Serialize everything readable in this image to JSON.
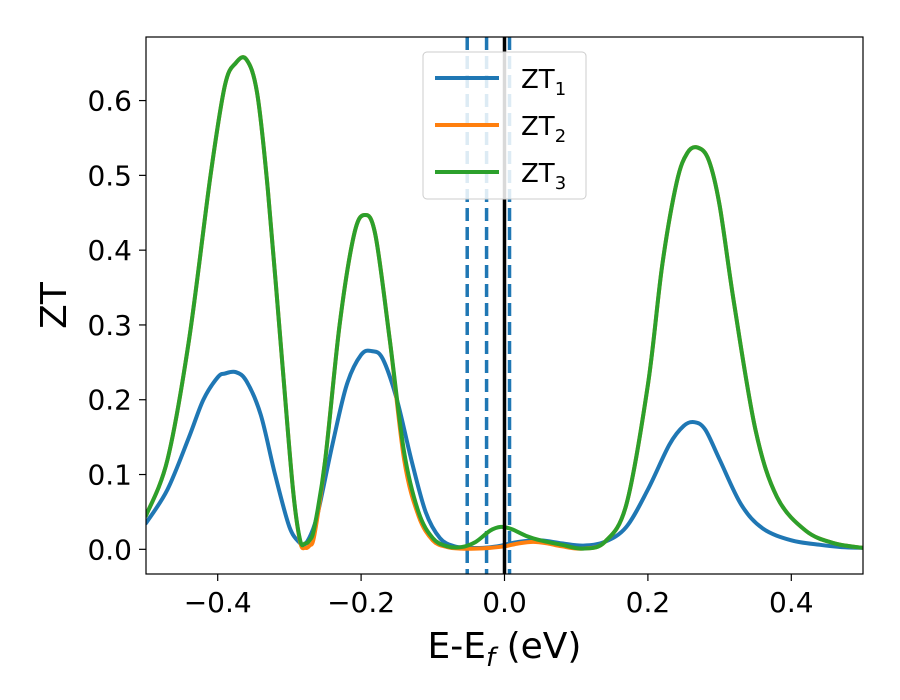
{
  "chart_data": {
    "type": "line",
    "xlabel": "E-E",
    "xlabel_sub": "f",
    "xlabel_unit": " (eV)",
    "ylabel": "ZT",
    "xlim": [
      -0.5,
      0.5
    ],
    "ylim": [
      -0.033,
      0.685
    ],
    "xticks": [
      -0.4,
      -0.2,
      0.0,
      0.2,
      0.4
    ],
    "xtick_labels": [
      "−0.4",
      "−0.2",
      "0.0",
      "0.2",
      "0.4"
    ],
    "yticks": [
      0.0,
      0.1,
      0.2,
      0.3,
      0.4,
      0.5,
      0.6
    ],
    "ytick_labels": [
      "0.0",
      "0.1",
      "0.2",
      "0.3",
      "0.4",
      "0.5",
      "0.6"
    ],
    "grid": false,
    "legend": {
      "position": "top-center"
    },
    "series": [
      {
        "name": "ZT",
        "name_sub": "1",
        "color": "#1f77b4",
        "x": [
          -0.5,
          -0.47,
          -0.44,
          -0.42,
          -0.4,
          -0.39,
          -0.375,
          -0.36,
          -0.34,
          -0.32,
          -0.3,
          -0.285,
          -0.28,
          -0.27,
          -0.26,
          -0.24,
          -0.22,
          -0.2,
          -0.185,
          -0.17,
          -0.15,
          -0.13,
          -0.11,
          -0.09,
          -0.07,
          -0.05,
          -0.03,
          -0.01,
          0.0,
          0.02,
          0.05,
          0.08,
          0.11,
          0.14,
          0.17,
          0.2,
          0.23,
          0.25,
          0.265,
          0.28,
          0.3,
          0.33,
          0.36,
          0.4,
          0.44,
          0.47,
          0.5
        ],
        "y": [
          0.035,
          0.08,
          0.15,
          0.2,
          0.23,
          0.235,
          0.237,
          0.225,
          0.18,
          0.1,
          0.03,
          0.008,
          0.005,
          0.02,
          0.05,
          0.14,
          0.22,
          0.26,
          0.265,
          0.255,
          0.2,
          0.12,
          0.05,
          0.015,
          0.004,
          0.002,
          0.002,
          0.004,
          0.006,
          0.01,
          0.012,
          0.008,
          0.005,
          0.01,
          0.03,
          0.08,
          0.14,
          0.165,
          0.17,
          0.16,
          0.12,
          0.06,
          0.028,
          0.012,
          0.006,
          0.003,
          0.002
        ]
      },
      {
        "name": "ZT",
        "name_sub": "2",
        "color": "#ff7f0e",
        "x": [
          -0.5,
          -0.47,
          -0.44,
          -0.41,
          -0.39,
          -0.375,
          -0.36,
          -0.345,
          -0.33,
          -0.31,
          -0.295,
          -0.285,
          -0.278,
          -0.272,
          -0.265,
          -0.25,
          -0.23,
          -0.21,
          -0.195,
          -0.18,
          -0.16,
          -0.14,
          -0.12,
          -0.1,
          -0.08,
          -0.06,
          -0.04,
          -0.02,
          0.0,
          0.02,
          0.04,
          0.06,
          0.08,
          0.11,
          0.14,
          0.17,
          0.2,
          0.22,
          0.24,
          0.255,
          0.27,
          0.285,
          0.3,
          0.32,
          0.35,
          0.38,
          0.42,
          0.46,
          0.5
        ],
        "y": [
          0.045,
          0.12,
          0.28,
          0.5,
          0.62,
          0.65,
          0.655,
          0.61,
          0.48,
          0.25,
          0.08,
          0.01,
          0.002,
          0.005,
          0.02,
          0.12,
          0.3,
          0.42,
          0.447,
          0.42,
          0.28,
          0.12,
          0.045,
          0.012,
          0.003,
          0.001,
          0.001,
          0.002,
          0.004,
          0.008,
          0.01,
          0.008,
          0.004,
          0.001,
          0.01,
          0.06,
          0.22,
          0.38,
          0.49,
          0.53,
          0.537,
          0.52,
          0.46,
          0.33,
          0.16,
          0.07,
          0.025,
          0.008,
          0.002
        ]
      },
      {
        "name": "ZT",
        "name_sub": "3",
        "color": "#2ca02c",
        "x": [
          -0.5,
          -0.47,
          -0.44,
          -0.41,
          -0.39,
          -0.375,
          -0.36,
          -0.345,
          -0.33,
          -0.31,
          -0.295,
          -0.285,
          -0.278,
          -0.272,
          -0.265,
          -0.25,
          -0.23,
          -0.21,
          -0.195,
          -0.18,
          -0.16,
          -0.14,
          -0.12,
          -0.1,
          -0.08,
          -0.06,
          -0.04,
          -0.02,
          -0.005,
          0.01,
          0.03,
          0.05,
          0.08,
          0.11,
          0.14,
          0.17,
          0.2,
          0.22,
          0.24,
          0.255,
          0.27,
          0.285,
          0.3,
          0.32,
          0.35,
          0.38,
          0.42,
          0.46,
          0.5
        ],
        "y": [
          0.045,
          0.12,
          0.28,
          0.5,
          0.62,
          0.65,
          0.655,
          0.61,
          0.48,
          0.25,
          0.08,
          0.012,
          0.008,
          0.012,
          0.03,
          0.12,
          0.3,
          0.42,
          0.447,
          0.42,
          0.28,
          0.13,
          0.05,
          0.015,
          0.004,
          0.003,
          0.01,
          0.025,
          0.03,
          0.027,
          0.018,
          0.012,
          0.006,
          0.001,
          0.01,
          0.06,
          0.22,
          0.38,
          0.49,
          0.53,
          0.537,
          0.52,
          0.46,
          0.33,
          0.16,
          0.07,
          0.025,
          0.008,
          0.002
        ]
      }
    ],
    "vertical_lines": [
      {
        "x": 0.0,
        "style": "solid",
        "color": "#000000"
      },
      {
        "x": -0.052,
        "style": "dashed",
        "color": "#1f77b4"
      },
      {
        "x": -0.025,
        "style": "dashed",
        "color": "#1f77b4"
      },
      {
        "x": 0.007,
        "style": "dashed",
        "color": "#1f77b4"
      }
    ]
  }
}
